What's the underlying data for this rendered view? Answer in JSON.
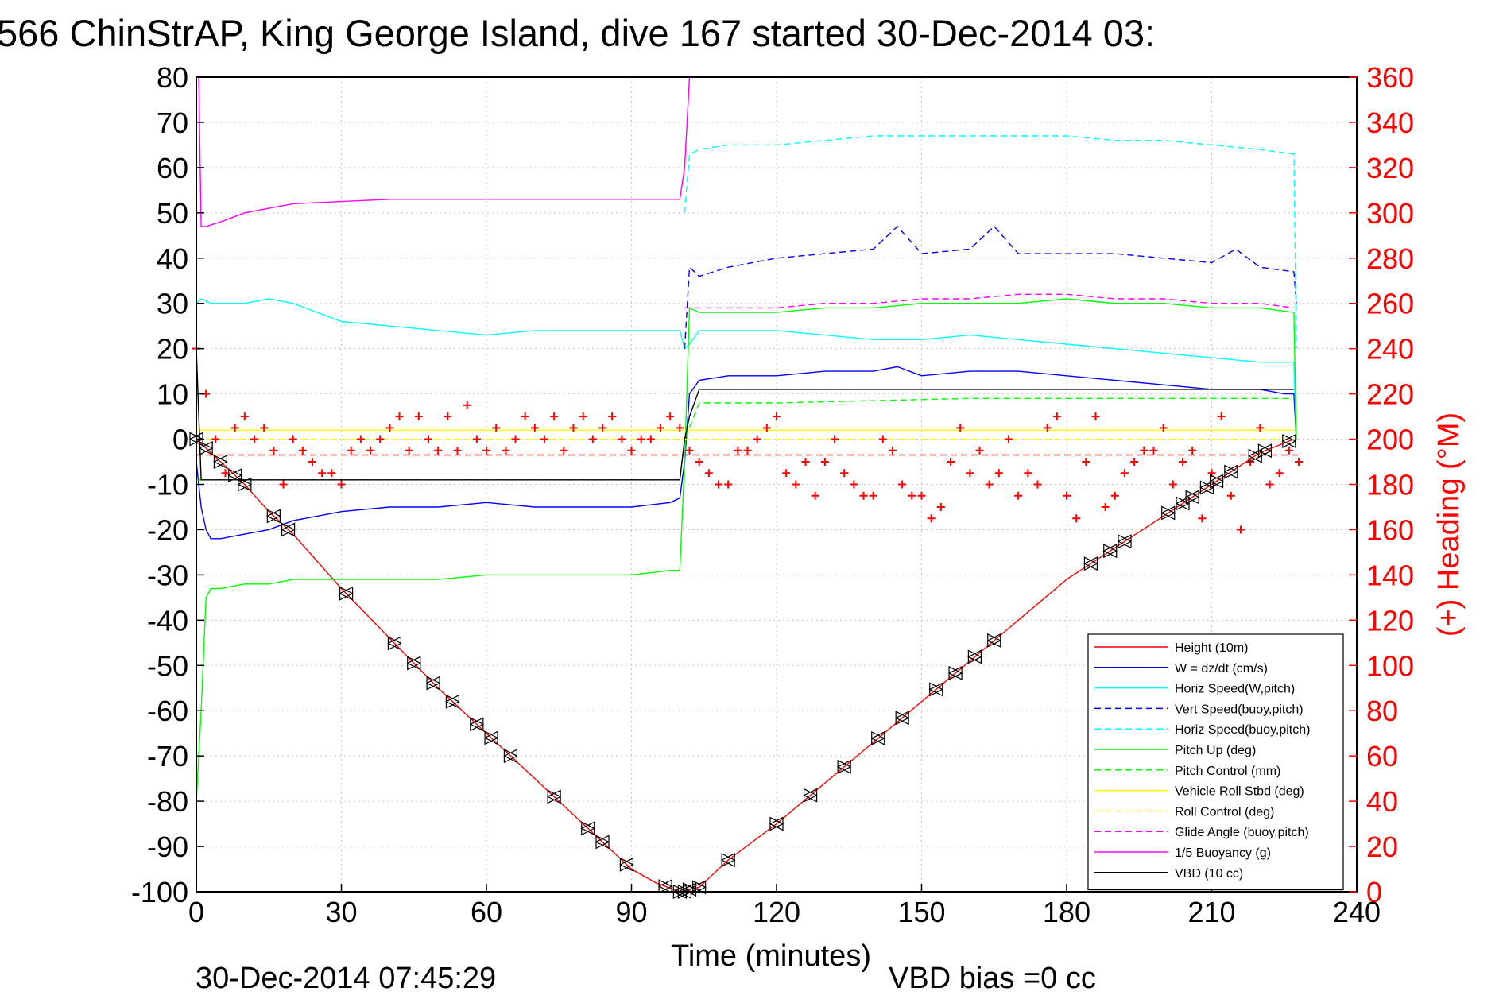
{
  "title": "566 ChinStrAP, King George Island, dive 167 started 30-Dec-2014 03:",
  "footer": {
    "timestamp": "30-Dec-2014 07:45:29",
    "vbd_bias": "VBD bias =0 cc"
  },
  "chart_data": {
    "type": "line",
    "xlabel": "Time (minutes)",
    "ylabel": "",
    "y2label": "(+) Heading (°M)",
    "xlim": [
      0,
      240
    ],
    "ylim": [
      -100,
      80
    ],
    "y2lim": [
      0,
      360
    ],
    "xticks": [
      0,
      30,
      60,
      90,
      120,
      150,
      180,
      210,
      240
    ],
    "yticks": [
      80,
      70,
      60,
      50,
      40,
      30,
      20,
      10,
      0,
      -10,
      -20,
      -30,
      -40,
      -50,
      -60,
      -70,
      -80,
      -90,
      -100
    ],
    "y2ticks": [
      360,
      340,
      320,
      300,
      280,
      260,
      240,
      220,
      200,
      180,
      160,
      140,
      120,
      100,
      80,
      60,
      40,
      20,
      0
    ],
    "grid": true,
    "legend_position": "bottom-right",
    "colors": {
      "height": "#ff0000",
      "w": "#0000ff",
      "horiz_w": "#00ffff",
      "vert_buoy": "#0000ff",
      "horiz_buoy": "#00ffff",
      "pitch": "#00ff00",
      "pitch_ctrl": "#00ff00",
      "roll": "#ffff00",
      "roll_ctrl": "#ffff00",
      "glide": "#ff00ff",
      "buoyancy": "#ff00ff",
      "vbd": "#000000",
      "heading": "#ff0000",
      "markers": "#000000"
    },
    "series": [
      {
        "key": "height",
        "name": "Height (10m)",
        "style": "solid",
        "x": [
          0,
          5,
          10,
          15,
          20,
          30,
          40,
          50,
          60,
          70,
          80,
          90,
          95,
          100,
          101,
          102,
          104,
          110,
          120,
          130,
          140,
          150,
          160,
          170,
          180,
          190,
          200,
          210,
          220,
          227
        ],
        "y": [
          0,
          -5,
          -10,
          -16,
          -21,
          -33,
          -44,
          -55,
          -65,
          -75,
          -85,
          -95,
          -98,
          -100,
          -100,
          -99.5,
          -99,
          -93,
          -85,
          -76,
          -67,
          -58,
          -49,
          -40,
          -31,
          -24,
          -17,
          -10,
          -3,
          0
        ]
      },
      {
        "key": "w",
        "name": "W = dz/dt (cm/s)",
        "style": "solid",
        "x": [
          0,
          1,
          2,
          3,
          5,
          10,
          15,
          20,
          25,
          30,
          40,
          50,
          60,
          70,
          80,
          90,
          98,
          100,
          101,
          102,
          104,
          110,
          120,
          130,
          140,
          145,
          150,
          160,
          170,
          180,
          190,
          200,
          210,
          220,
          225,
          227,
          227.5
        ],
        "y": [
          -5,
          -15,
          -20,
          -22,
          -22,
          -21,
          -20,
          -18,
          -17,
          -16,
          -15,
          -15,
          -14,
          -15,
          -15,
          -15,
          -14,
          -13,
          -5,
          10,
          13,
          14,
          14,
          15,
          15,
          16,
          14,
          15,
          15,
          14,
          13,
          12,
          11,
          11,
          10,
          10,
          0
        ]
      },
      {
        "key": "horiz_w",
        "name": "Horiz Speed(W,pitch)",
        "style": "solid",
        "x": [
          0,
          1,
          3,
          10,
          15,
          20,
          30,
          40,
          50,
          60,
          70,
          80,
          90,
          100,
          101,
          102,
          104,
          110,
          120,
          130,
          140,
          150,
          160,
          170,
          180,
          190,
          200,
          210,
          220,
          227,
          227.5
        ],
        "y": [
          30,
          31,
          30,
          30,
          31,
          30,
          26,
          25,
          24,
          23,
          24,
          24,
          24,
          24,
          20,
          21,
          24,
          24,
          24,
          23,
          22,
          22,
          23,
          22,
          21,
          20,
          19,
          18,
          17,
          17,
          0
        ]
      },
      {
        "key": "vert_buoy",
        "name": "Vert Speed(buoy,pitch)",
        "style": "dashed",
        "x": [
          101,
          102,
          104,
          110,
          120,
          130,
          140,
          145,
          150,
          160,
          165,
          170,
          180,
          190,
          200,
          210,
          215,
          220,
          227,
          227.5
        ],
        "y": [
          20,
          38,
          36,
          38,
          40,
          41,
          42,
          47,
          41,
          42,
          47,
          41,
          41,
          41,
          40,
          39,
          42,
          38,
          37,
          30
        ]
      },
      {
        "key": "horiz_buoy",
        "name": "Horiz Speed(buoy,pitch)",
        "style": "dashed",
        "x": [
          101,
          102,
          104,
          110,
          120,
          130,
          140,
          150,
          160,
          170,
          180,
          190,
          200,
          210,
          220,
          227,
          227.5
        ],
        "y": [
          50,
          63,
          64,
          65,
          65,
          66,
          67,
          67,
          67,
          67,
          67,
          66,
          66,
          65,
          64,
          63,
          20
        ]
      },
      {
        "key": "pitch",
        "name": "Pitch Up (deg)",
        "style": "solid",
        "x": [
          0,
          1,
          2,
          3,
          5,
          10,
          15,
          20,
          30,
          40,
          50,
          60,
          70,
          80,
          90,
          98,
          100,
          101,
          102,
          104,
          110,
          120,
          130,
          140,
          150,
          160,
          170,
          180,
          190,
          200,
          210,
          220,
          227,
          227.5
        ],
        "y": [
          -80,
          -60,
          -35,
          -33,
          -33,
          -32,
          -32,
          -31,
          -31,
          -31,
          -31,
          -30,
          -30,
          -30,
          -30,
          -29,
          -29,
          -5,
          29,
          28,
          28,
          28,
          29,
          29,
          30,
          30,
          30,
          31,
          30,
          30,
          29,
          29,
          28,
          0
        ]
      },
      {
        "key": "pitch_ctrl",
        "name": "Pitch Control (mm)",
        "style": "dashed",
        "x": [
          0,
          100,
          101,
          104,
          120,
          160,
          200,
          227
        ],
        "y": [
          -9,
          -9,
          0,
          8,
          8,
          9,
          9,
          9
        ]
      },
      {
        "key": "roll",
        "name": "Vehicle Roll Stbd (deg)",
        "style": "solid",
        "x": [
          0,
          10,
          20,
          30,
          40,
          50,
          60,
          70,
          80,
          90,
          100,
          110,
          120,
          130,
          140,
          150,
          160,
          170,
          180,
          190,
          200,
          210,
          220,
          227
        ],
        "y": [
          2,
          2,
          2,
          2,
          2,
          2,
          2,
          2,
          2,
          2,
          2,
          2,
          2,
          2,
          2,
          2,
          2,
          2,
          2,
          2,
          2,
          2,
          2,
          2
        ]
      },
      {
        "key": "roll_ctrl",
        "name": "Roll Control (deg)",
        "style": "dashed",
        "x": [
          0,
          227
        ],
        "y": [
          0,
          0
        ]
      },
      {
        "key": "glide",
        "name": "Glide Angle (buoy,pitch)",
        "style": "dashed",
        "x": [
          101,
          104,
          110,
          120,
          130,
          140,
          150,
          160,
          170,
          180,
          190,
          200,
          210,
          220,
          227
        ],
        "y": [
          29,
          29,
          29,
          29,
          30,
          30,
          31,
          31,
          32,
          32,
          31,
          31,
          30,
          30,
          29
        ]
      },
      {
        "key": "buoyancy",
        "name": "1/5 Buoyancy (g)",
        "style": "solid",
        "x": [
          0.5,
          1,
          2,
          5,
          10,
          15,
          20,
          30,
          40,
          50,
          60,
          70,
          80,
          90,
          100,
          101,
          102
        ],
        "y": [
          80,
          47,
          47,
          48,
          50,
          51,
          52,
          52.5,
          53,
          53,
          53,
          53,
          53,
          53,
          53,
          60,
          80
        ]
      },
      {
        "key": "vbd",
        "name": "VBD (10 cc)",
        "style": "solid",
        "x": [
          0,
          1,
          2,
          10,
          50,
          90,
          100,
          101,
          102,
          104,
          110,
          120,
          150,
          180,
          210,
          227
        ],
        "y": [
          20,
          -9,
          -9,
          -9,
          -9,
          -9,
          -9,
          0,
          5,
          11,
          11,
          11,
          11,
          11,
          11,
          11
        ]
      }
    ],
    "heading": {
      "name": "(+) Heading",
      "axis": "right",
      "x": [
        0,
        2,
        4,
        6,
        8,
        10,
        12,
        14,
        16,
        18,
        20,
        22,
        24,
        26,
        28,
        30,
        32,
        34,
        36,
        38,
        40,
        42,
        44,
        46,
        48,
        50,
        52,
        54,
        56,
        58,
        60,
        62,
        64,
        66,
        68,
        70,
        72,
        74,
        76,
        78,
        80,
        82,
        84,
        86,
        88,
        90,
        92,
        94,
        96,
        98,
        100,
        102,
        104,
        106,
        108,
        110,
        112,
        114,
        116,
        118,
        120,
        122,
        124,
        126,
        128,
        130,
        132,
        134,
        136,
        138,
        140,
        142,
        144,
        146,
        148,
        150,
        152,
        154,
        156,
        158,
        160,
        162,
        164,
        166,
        168,
        170,
        172,
        174,
        176,
        178,
        180,
        182,
        184,
        186,
        188,
        190,
        192,
        194,
        196,
        198,
        200,
        202,
        204,
        206,
        208,
        210,
        212,
        214,
        216,
        218,
        220,
        222,
        224,
        226,
        228
      ],
      "y": [
        240,
        220,
        200,
        185,
        205,
        210,
        200,
        205,
        195,
        180,
        200,
        195,
        190,
        185,
        185,
        180,
        195,
        200,
        195,
        200,
        205,
        210,
        195,
        210,
        200,
        195,
        210,
        195,
        215,
        200,
        195,
        205,
        195,
        200,
        210,
        205,
        200,
        210,
        195,
        205,
        210,
        200,
        205,
        210,
        200,
        195,
        200,
        200,
        205,
        210,
        205,
        195,
        190,
        185,
        180,
        180,
        195,
        195,
        200,
        205,
        210,
        185,
        180,
        190,
        175,
        190,
        200,
        185,
        180,
        175,
        175,
        200,
        195,
        180,
        175,
        175,
        165,
        170,
        190,
        205,
        185,
        195,
        180,
        185,
        200,
        175,
        185,
        180,
        205,
        210,
        175,
        165,
        190,
        210,
        170,
        175,
        185,
        190,
        195,
        195,
        205,
        180,
        190,
        195,
        165,
        185,
        210,
        175,
        160,
        190,
        205,
        180,
        185,
        195,
        190
      ]
    },
    "heading_mean": 193,
    "markers": {
      "name": "surface/depth markers",
      "x": [
        0,
        2,
        5,
        8,
        10,
        16,
        19,
        31,
        41,
        45,
        49,
        53,
        58,
        61,
        65,
        74,
        81,
        84,
        89,
        97,
        100,
        101,
        102,
        104,
        110,
        120,
        127,
        134,
        141,
        146,
        153,
        157,
        161,
        165,
        185,
        189,
        192,
        201,
        204,
        206,
        209,
        211,
        214,
        219,
        221,
        226
      ]
    }
  }
}
